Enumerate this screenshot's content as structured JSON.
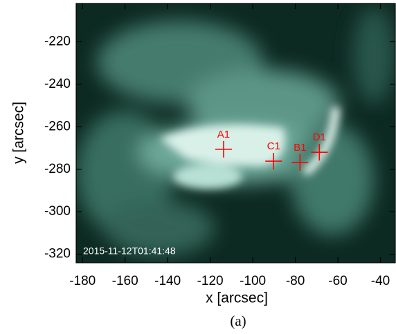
{
  "chart_data": {
    "type": "scatter",
    "x_label": "x [arcsec]",
    "y_label": "y [arcsec]",
    "annotation": "2015-11-12T01:41:48",
    "caption": "(a)",
    "labels": [
      "A1",
      "C1",
      "B1",
      "D1"
    ],
    "x": [
      -113.7,
      -90.2,
      -77.8,
      -68.7
    ],
    "values": [
      -270.6,
      -276.2,
      -276.8,
      -272.0
    ],
    "color": "#ff0000",
    "xlim": [
      -183,
      -33
    ],
    "xticks": [
      -180,
      -160,
      -140,
      -120,
      -100,
      -80,
      -60,
      -40
    ],
    "ylim": [
      -324,
      -202
    ],
    "yticks": [
      -220,
      -240,
      -260,
      -280,
      -300,
      -320
    ]
  }
}
